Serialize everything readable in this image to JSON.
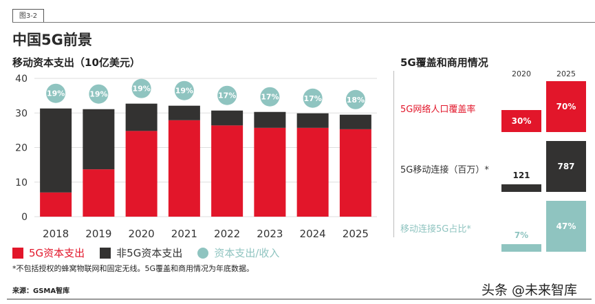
{
  "figure_tag": "图3-2",
  "title": "中国5G前景",
  "watermark": "头条 @未来智库",
  "footnote": "*不包括授权的蜂窝物联网和固定无线。5G覆盖和商用情况为年底数据。",
  "source": "来源：GSMA智库",
  "colors": {
    "red": "#e2162a",
    "dark": "#333231",
    "teal": "#8fc4c0"
  },
  "chart_data": [
    {
      "type": "bar",
      "stacked": true,
      "title": "移动资本支出（10亿美元）",
      "categories": [
        "2018",
        "2019",
        "2020",
        "2021",
        "2022",
        "2023",
        "2024",
        "2025"
      ],
      "ylim": [
        0,
        40
      ],
      "yticks": [
        "0",
        "10",
        "20",
        "30",
        "40"
      ],
      "grid": true,
      "series": [
        {
          "name": "5G资本支出",
          "color": "#e2162a",
          "values": [
            7.0,
            13.7,
            24.8,
            27.9,
            26.4,
            25.7,
            25.7,
            25.3
          ]
        },
        {
          "name": "非5G资本支出",
          "color": "#333231",
          "values": [
            24.3,
            17.4,
            7.9,
            4.2,
            4.3,
            4.6,
            4.2,
            4.2
          ]
        }
      ],
      "ratio_series": {
        "name": "资本支出/收入",
        "color": "#8fc4c0",
        "labels": [
          "19%",
          "19%",
          "19%",
          "19%",
          "17%",
          "17%",
          "17%",
          "18%"
        ]
      },
      "legend_position": "bottom"
    },
    {
      "type": "bar",
      "title": "5G覆盖和商用情况",
      "categories": [
        "2020",
        "2025"
      ],
      "rows": [
        {
          "name": "5G网络人口覆盖率",
          "color": "#e2162a",
          "values": [
            30,
            70
          ],
          "labels": [
            "30%",
            "70%"
          ]
        },
        {
          "name": "5G移动连接（百万）*",
          "color": "#333231",
          "values": [
            121,
            787
          ],
          "labels": [
            "121",
            "787"
          ]
        },
        {
          "name": "移动连接5G占比*",
          "color": "#8fc4c0",
          "values": [
            7,
            47
          ],
          "labels": [
            "7%",
            "47%"
          ]
        }
      ]
    }
  ]
}
